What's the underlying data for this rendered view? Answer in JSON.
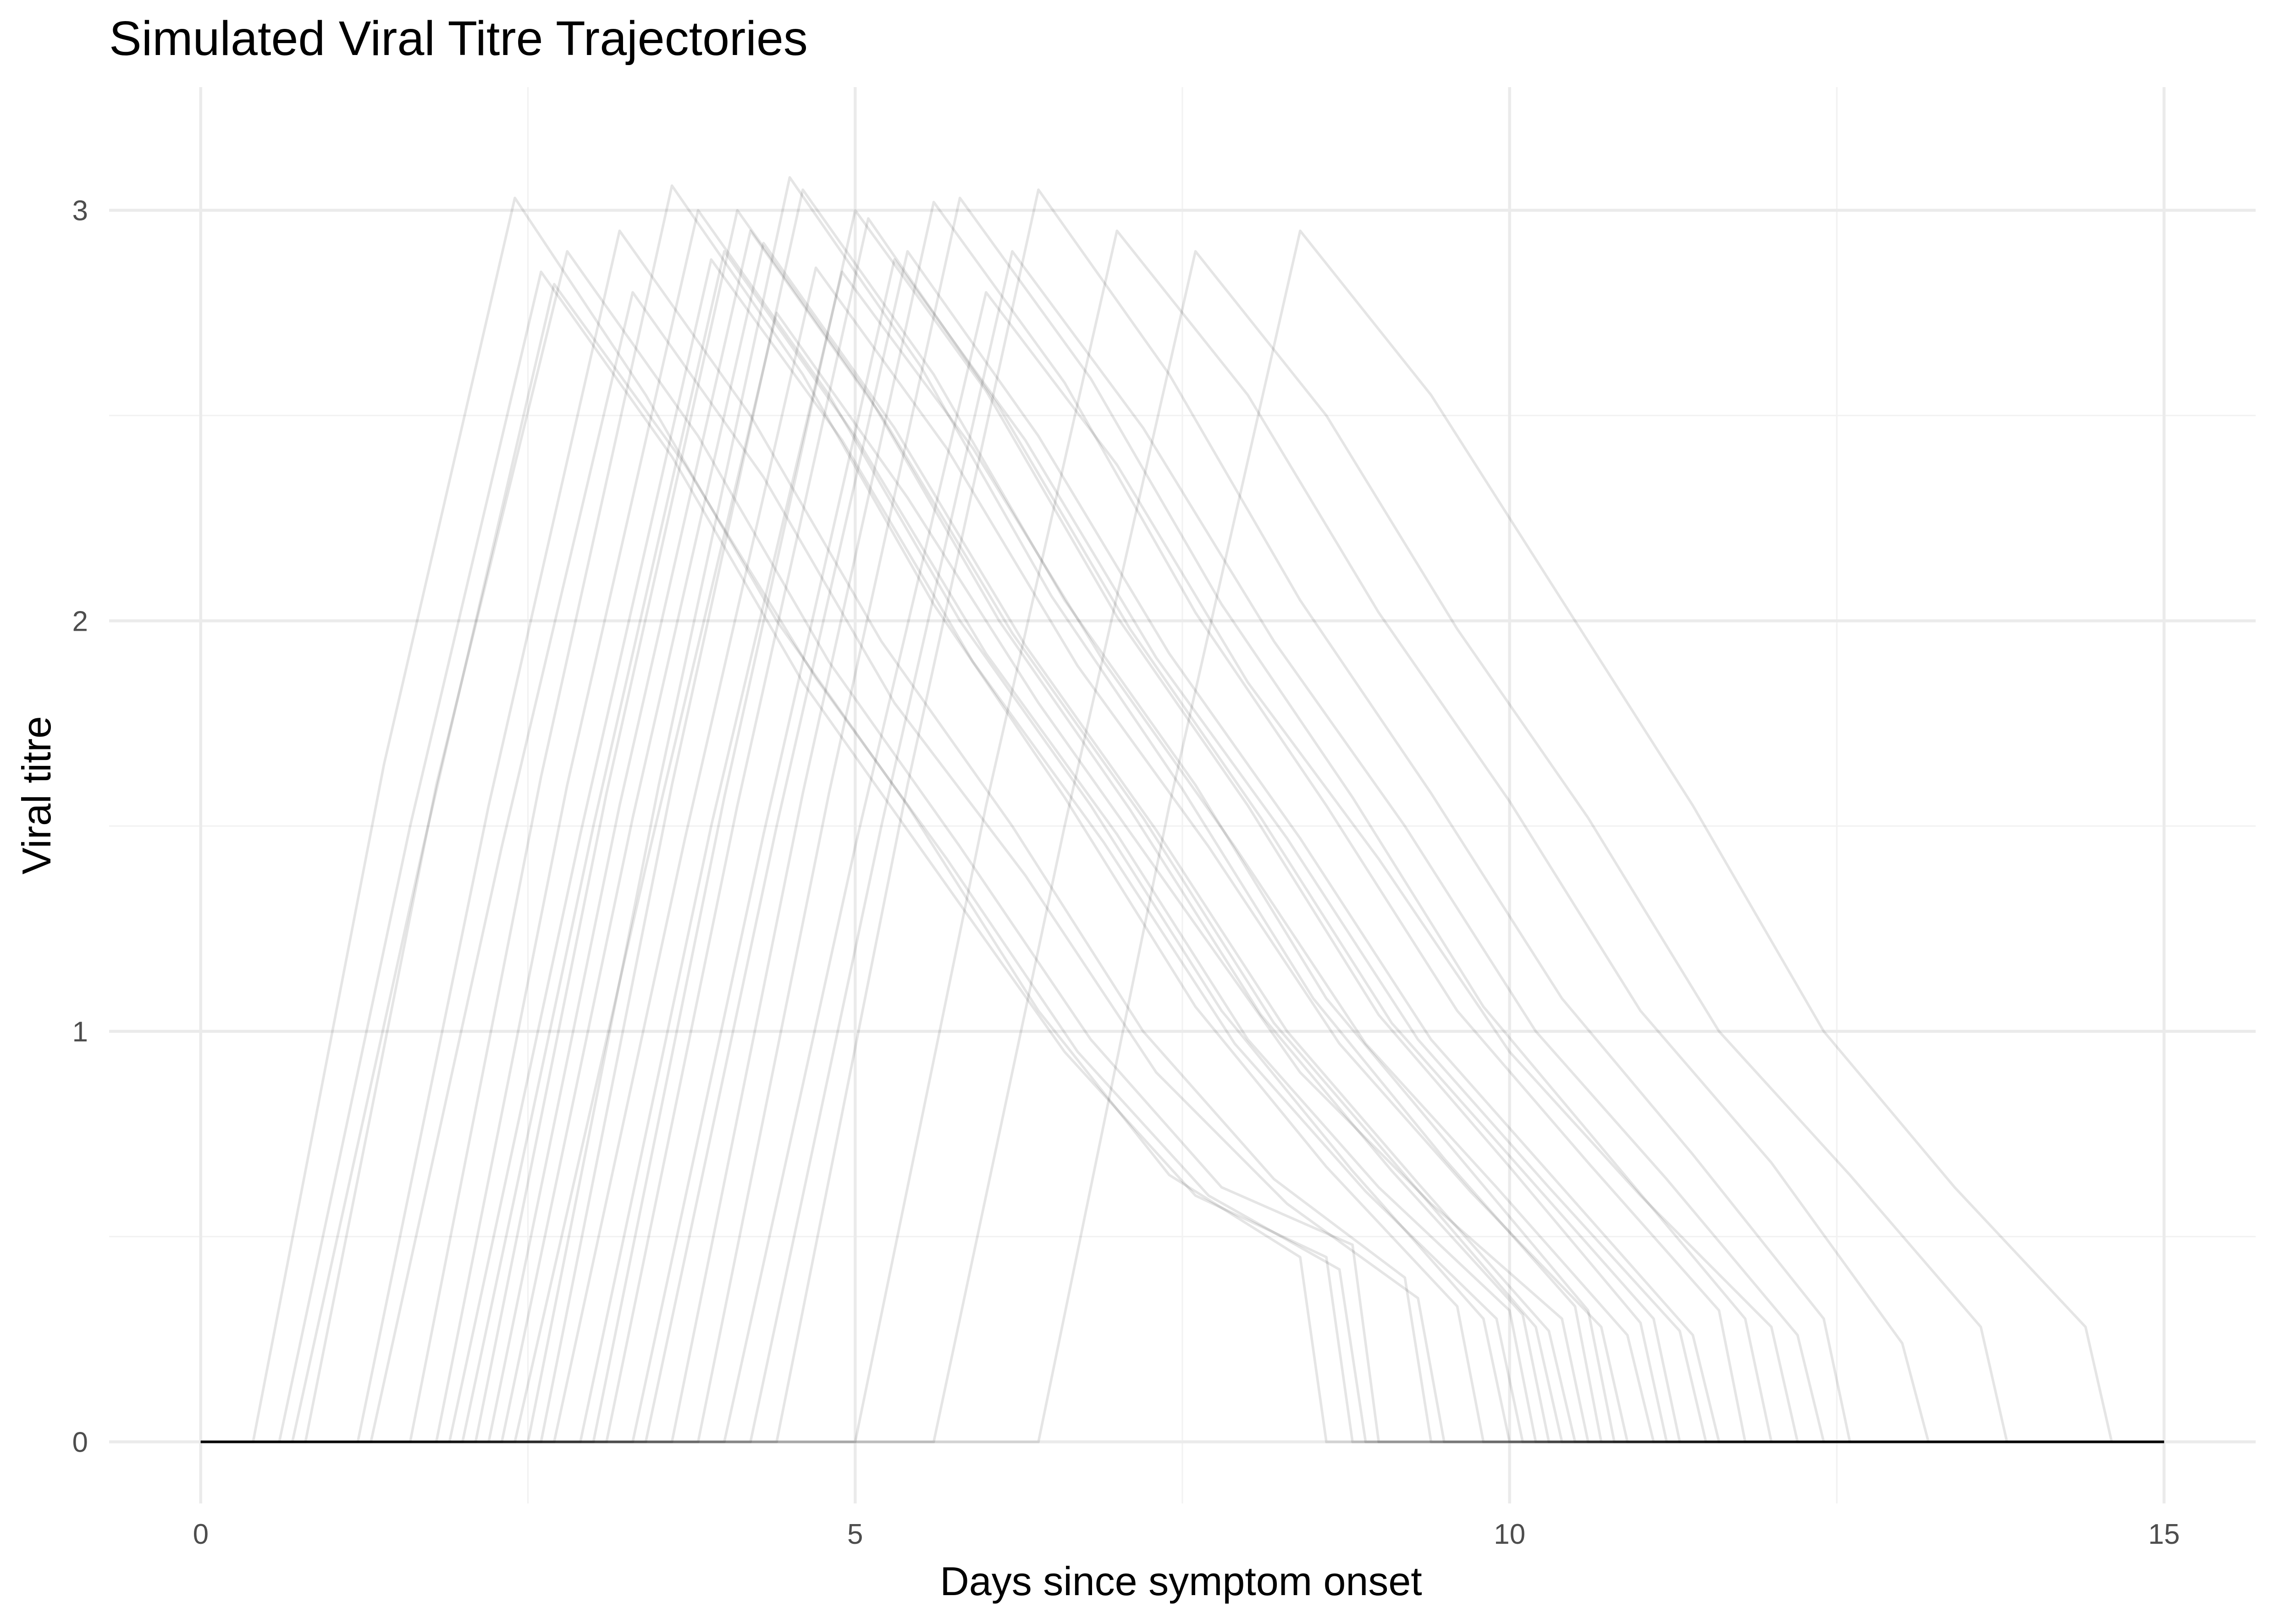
{
  "chart_data": {
    "type": "line",
    "title": "Simulated Viral Titre Trajectories",
    "xlabel": "Days since symptom onset",
    "ylabel": "Viral titre",
    "xlim": [
      -0.7,
      15.7
    ],
    "ylim": [
      -0.15,
      3.3
    ],
    "x_ticks": [
      0,
      5,
      10,
      15
    ],
    "y_ticks": [
      0,
      1,
      2,
      3
    ],
    "x_minor_ticks": [
      2.5,
      7.5,
      12.5
    ],
    "y_minor_ticks": [
      0.5,
      1.5,
      2.5
    ],
    "grid": true,
    "legend": "none",
    "line_color": "#000000",
    "line_opacity": 0.1,
    "series": [
      {
        "x": [
          0,
          0.4,
          1.4,
          2.4,
          3.4,
          4.4,
          5.4,
          6.4,
          7.4,
          8.4,
          8.6,
          15
        ],
        "values": [
          0,
          0,
          1.65,
          3.03,
          2.55,
          2.0,
          1.55,
          1.05,
          0.65,
          0.45,
          0,
          0
        ]
      },
      {
        "x": [
          0,
          0.6,
          1.6,
          2.6,
          3.6,
          4.6,
          5.6,
          6.6,
          7.6,
          8.6,
          8.8,
          15
        ],
        "values": [
          0,
          0,
          1.5,
          2.85,
          2.4,
          1.85,
          1.4,
          0.95,
          0.6,
          0.45,
          0,
          0
        ]
      },
      {
        "x": [
          0,
          0.8,
          1.8,
          2.8,
          3.8,
          4.8,
          5.8,
          6.8,
          7.8,
          8.8,
          9.0,
          15
        ],
        "values": [
          0,
          0,
          1.6,
          2.9,
          2.45,
          1.9,
          1.45,
          0.98,
          0.62,
          0.48,
          0,
          0
        ]
      },
      {
        "x": [
          0,
          1.2,
          2.2,
          3.2,
          4.2,
          5.2,
          6.2,
          7.2,
          8.2,
          9.2,
          9.4,
          15
        ],
        "values": [
          0,
          0,
          1.55,
          2.95,
          2.5,
          1.95,
          1.5,
          1.0,
          0.64,
          0.4,
          0,
          0
        ]
      },
      {
        "x": [
          0,
          1.3,
          2.3,
          3.3,
          4.3,
          5.3,
          6.3,
          7.3,
          8.3,
          9.3,
          9.5,
          15
        ],
        "values": [
          0,
          0,
          1.45,
          2.8,
          2.35,
          1.8,
          1.38,
          0.9,
          0.58,
          0.35,
          0,
          0
        ]
      },
      {
        "x": [
          0,
          1.8,
          2.8,
          3.8,
          4.8,
          5.8,
          6.8,
          7.8,
          8.8,
          9.8,
          10.0,
          15
        ],
        "values": [
          0,
          0,
          1.6,
          3.0,
          2.55,
          2.0,
          1.55,
          1.05,
          0.66,
          0.3,
          0,
          0
        ]
      },
      {
        "x": [
          0,
          2.0,
          3.0,
          4.0,
          5.0,
          6.0,
          7.0,
          8.0,
          9.0,
          10.0,
          10.2,
          15
        ],
        "values": [
          0,
          0,
          1.5,
          2.9,
          2.45,
          1.92,
          1.48,
          0.98,
          0.62,
          0.32,
          0,
          0
        ]
      },
      {
        "x": [
          0,
          2.2,
          3.2,
          4.2,
          5.2,
          6.2,
          7.2,
          8.2,
          9.2,
          10.2,
          10.4,
          15
        ],
        "values": [
          0,
          0,
          1.55,
          2.95,
          2.5,
          1.97,
          1.52,
          1.02,
          0.65,
          0.28,
          0,
          0
        ]
      },
      {
        "x": [
          0,
          2.4,
          3.4,
          4.4,
          5.4,
          6.4,
          7.4,
          8.4,
          9.4,
          10.4,
          10.6,
          15
        ],
        "values": [
          0,
          0,
          1.4,
          2.75,
          2.3,
          1.8,
          1.35,
          0.9,
          0.58,
          0.3,
          0,
          0
        ]
      },
      {
        "x": [
          0,
          2.6,
          3.6,
          4.6,
          5.6,
          6.6,
          7.6,
          8.6,
          9.6,
          10.6,
          10.8,
          15
        ],
        "values": [
          0,
          0,
          1.6,
          3.05,
          2.6,
          2.05,
          1.6,
          1.08,
          0.7,
          0.32,
          0,
          0
        ]
      },
      {
        "x": [
          0,
          2.9,
          3.9,
          4.9,
          5.9,
          6.9,
          7.9,
          8.9,
          9.9,
          10.9,
          11.1,
          15
        ],
        "values": [
          0,
          0,
          1.5,
          2.85,
          2.42,
          1.9,
          1.45,
          0.97,
          0.62,
          0.26,
          0,
          0
        ]
      },
      {
        "x": [
          0,
          3.1,
          4.1,
          5.1,
          6.1,
          7.1,
          8.1,
          9.1,
          10.1,
          11.1,
          11.3,
          15
        ],
        "values": [
          0,
          0,
          1.55,
          2.98,
          2.52,
          1.98,
          1.52,
          1.02,
          0.66,
          0.3,
          0,
          0
        ]
      },
      {
        "x": [
          0,
          3.4,
          4.4,
          5.4,
          6.4,
          7.4,
          8.4,
          9.4,
          10.4,
          11.4,
          11.6,
          15
        ],
        "values": [
          0,
          0,
          1.5,
          2.9,
          2.45,
          1.92,
          1.47,
          0.98,
          0.62,
          0.26,
          0,
          0
        ]
      },
      {
        "x": [
          0,
          3.6,
          4.6,
          5.6,
          6.6,
          7.6,
          8.6,
          9.6,
          10.6,
          11.6,
          11.8,
          15
        ],
        "values": [
          0,
          0,
          1.58,
          3.02,
          2.58,
          2.02,
          1.55,
          1.05,
          0.68,
          0.32,
          0,
          0
        ]
      },
      {
        "x": [
          0,
          4.0,
          5.0,
          6.0,
          7.0,
          8.0,
          9.0,
          10.0,
          11.0,
          12.0,
          12.2,
          15
        ],
        "values": [
          0,
          0,
          1.45,
          2.8,
          2.38,
          1.85,
          1.42,
          0.95,
          0.6,
          0.28,
          0,
          0
        ]
      },
      {
        "x": [
          0,
          4.4,
          5.4,
          6.4,
          7.4,
          8.4,
          9.4,
          10.4,
          11.4,
          12.4,
          12.6,
          15
        ],
        "values": [
          0,
          0,
          1.6,
          3.05,
          2.6,
          2.05,
          1.58,
          1.08,
          0.7,
          0.3,
          0,
          0
        ]
      },
      {
        "x": [
          0,
          5.0,
          6.0,
          7.0,
          8.0,
          9.0,
          10.0,
          11.0,
          12.0,
          13.0,
          13.2,
          15
        ],
        "values": [
          0,
          0,
          1.55,
          2.95,
          2.55,
          2.02,
          1.56,
          1.05,
          0.68,
          0.24,
          0,
          0
        ]
      },
      {
        "x": [
          0,
          5.6,
          6.6,
          7.6,
          8.6,
          9.6,
          10.6,
          11.6,
          12.6,
          13.6,
          13.8,
          15
        ],
        "values": [
          0,
          0,
          1.5,
          2.9,
          2.5,
          1.98,
          1.52,
          1.0,
          0.65,
          0.28,
          0,
          0
        ]
      },
      {
        "x": [
          0,
          6.4,
          7.4,
          8.4,
          9.4,
          10.4,
          11.4,
          12.4,
          13.4,
          14.4,
          14.6,
          15
        ],
        "values": [
          0,
          0,
          1.55,
          2.95,
          2.55,
          2.05,
          1.55,
          1.0,
          0.62,
          0.28,
          0,
          0
        ]
      },
      {
        "x": [
          0,
          0.7,
          1.7,
          2.7,
          3.7,
          4.7,
          5.7,
          6.7,
          7.7,
          8.7,
          8.9,
          15
        ],
        "values": [
          0,
          0,
          1.45,
          2.82,
          2.38,
          1.86,
          1.42,
          0.95,
          0.6,
          0.42,
          0,
          0
        ]
      },
      {
        "x": [
          0,
          1.6,
          2.6,
          3.6,
          4.6,
          5.6,
          6.6,
          7.6,
          8.6,
          9.6,
          9.8,
          15
        ],
        "values": [
          0,
          0,
          1.62,
          3.06,
          2.6,
          2.04,
          1.57,
          1.06,
          0.67,
          0.33,
          0,
          0
        ]
      },
      {
        "x": [
          0,
          1.9,
          2.9,
          3.9,
          4.9,
          5.9,
          6.9,
          7.9,
          8.9,
          9.9,
          10.1,
          15
        ],
        "values": [
          0,
          0,
          1.48,
          2.88,
          2.44,
          1.9,
          1.46,
          0.97,
          0.61,
          0.3,
          0,
          0
        ]
      },
      {
        "x": [
          0,
          2.1,
          3.1,
          4.1,
          5.1,
          6.1,
          7.1,
          8.1,
          9.1,
          10.1,
          10.3,
          15
        ],
        "values": [
          0,
          0,
          1.58,
          3.0,
          2.55,
          2.0,
          1.54,
          1.04,
          0.66,
          0.31,
          0,
          0
        ]
      },
      {
        "x": [
          0,
          2.3,
          3.3,
          4.3,
          5.3,
          6.3,
          7.3,
          8.3,
          9.3,
          10.3,
          10.5,
          15
        ],
        "values": [
          0,
          0,
          1.52,
          2.92,
          2.47,
          1.94,
          1.49,
          1.0,
          0.63,
          0.27,
          0,
          0
        ]
      },
      {
        "x": [
          0,
          2.5,
          3.5,
          4.5,
          5.5,
          6.5,
          7.5,
          8.5,
          9.5,
          10.5,
          10.7,
          15
        ],
        "values": [
          0,
          0,
          1.6,
          3.08,
          2.62,
          2.06,
          1.59,
          1.08,
          0.69,
          0.33,
          0,
          0
        ]
      },
      {
        "x": [
          0,
          2.7,
          3.7,
          4.7,
          5.7,
          6.7,
          7.7,
          8.7,
          9.7,
          10.7,
          10.9,
          15
        ],
        "values": [
          0,
          0,
          1.47,
          2.86,
          2.42,
          1.89,
          1.45,
          0.97,
          0.61,
          0.28,
          0,
          0
        ]
      },
      {
        "x": [
          0,
          3.0,
          4.0,
          5.0,
          6.0,
          7.0,
          8.0,
          9.0,
          10.0,
          11.0,
          11.2,
          15
        ],
        "values": [
          0,
          0,
          1.57,
          3.0,
          2.56,
          2.01,
          1.55,
          1.04,
          0.67,
          0.29,
          0,
          0
        ]
      },
      {
        "x": [
          0,
          3.3,
          4.3,
          5.3,
          6.3,
          7.3,
          8.3,
          9.3,
          10.3,
          11.3,
          11.5,
          15
        ],
        "values": [
          0,
          0,
          1.48,
          2.88,
          2.44,
          1.91,
          1.47,
          0.98,
          0.62,
          0.27,
          0,
          0
        ]
      },
      {
        "x": [
          0,
          3.8,
          4.8,
          5.8,
          6.8,
          7.8,
          8.8,
          9.8,
          10.8,
          11.8,
          12.0,
          15
        ],
        "values": [
          0,
          0,
          1.58,
          3.03,
          2.59,
          2.04,
          1.57,
          1.06,
          0.68,
          0.3,
          0,
          0
        ]
      },
      {
        "x": [
          0,
          4.2,
          5.2,
          6.2,
          7.2,
          8.2,
          9.2,
          10.2,
          11.2,
          12.2,
          12.4,
          15
        ],
        "values": [
          0,
          0,
          1.5,
          2.9,
          2.47,
          1.95,
          1.5,
          1.0,
          0.64,
          0.26,
          0,
          0
        ]
      }
    ]
  }
}
